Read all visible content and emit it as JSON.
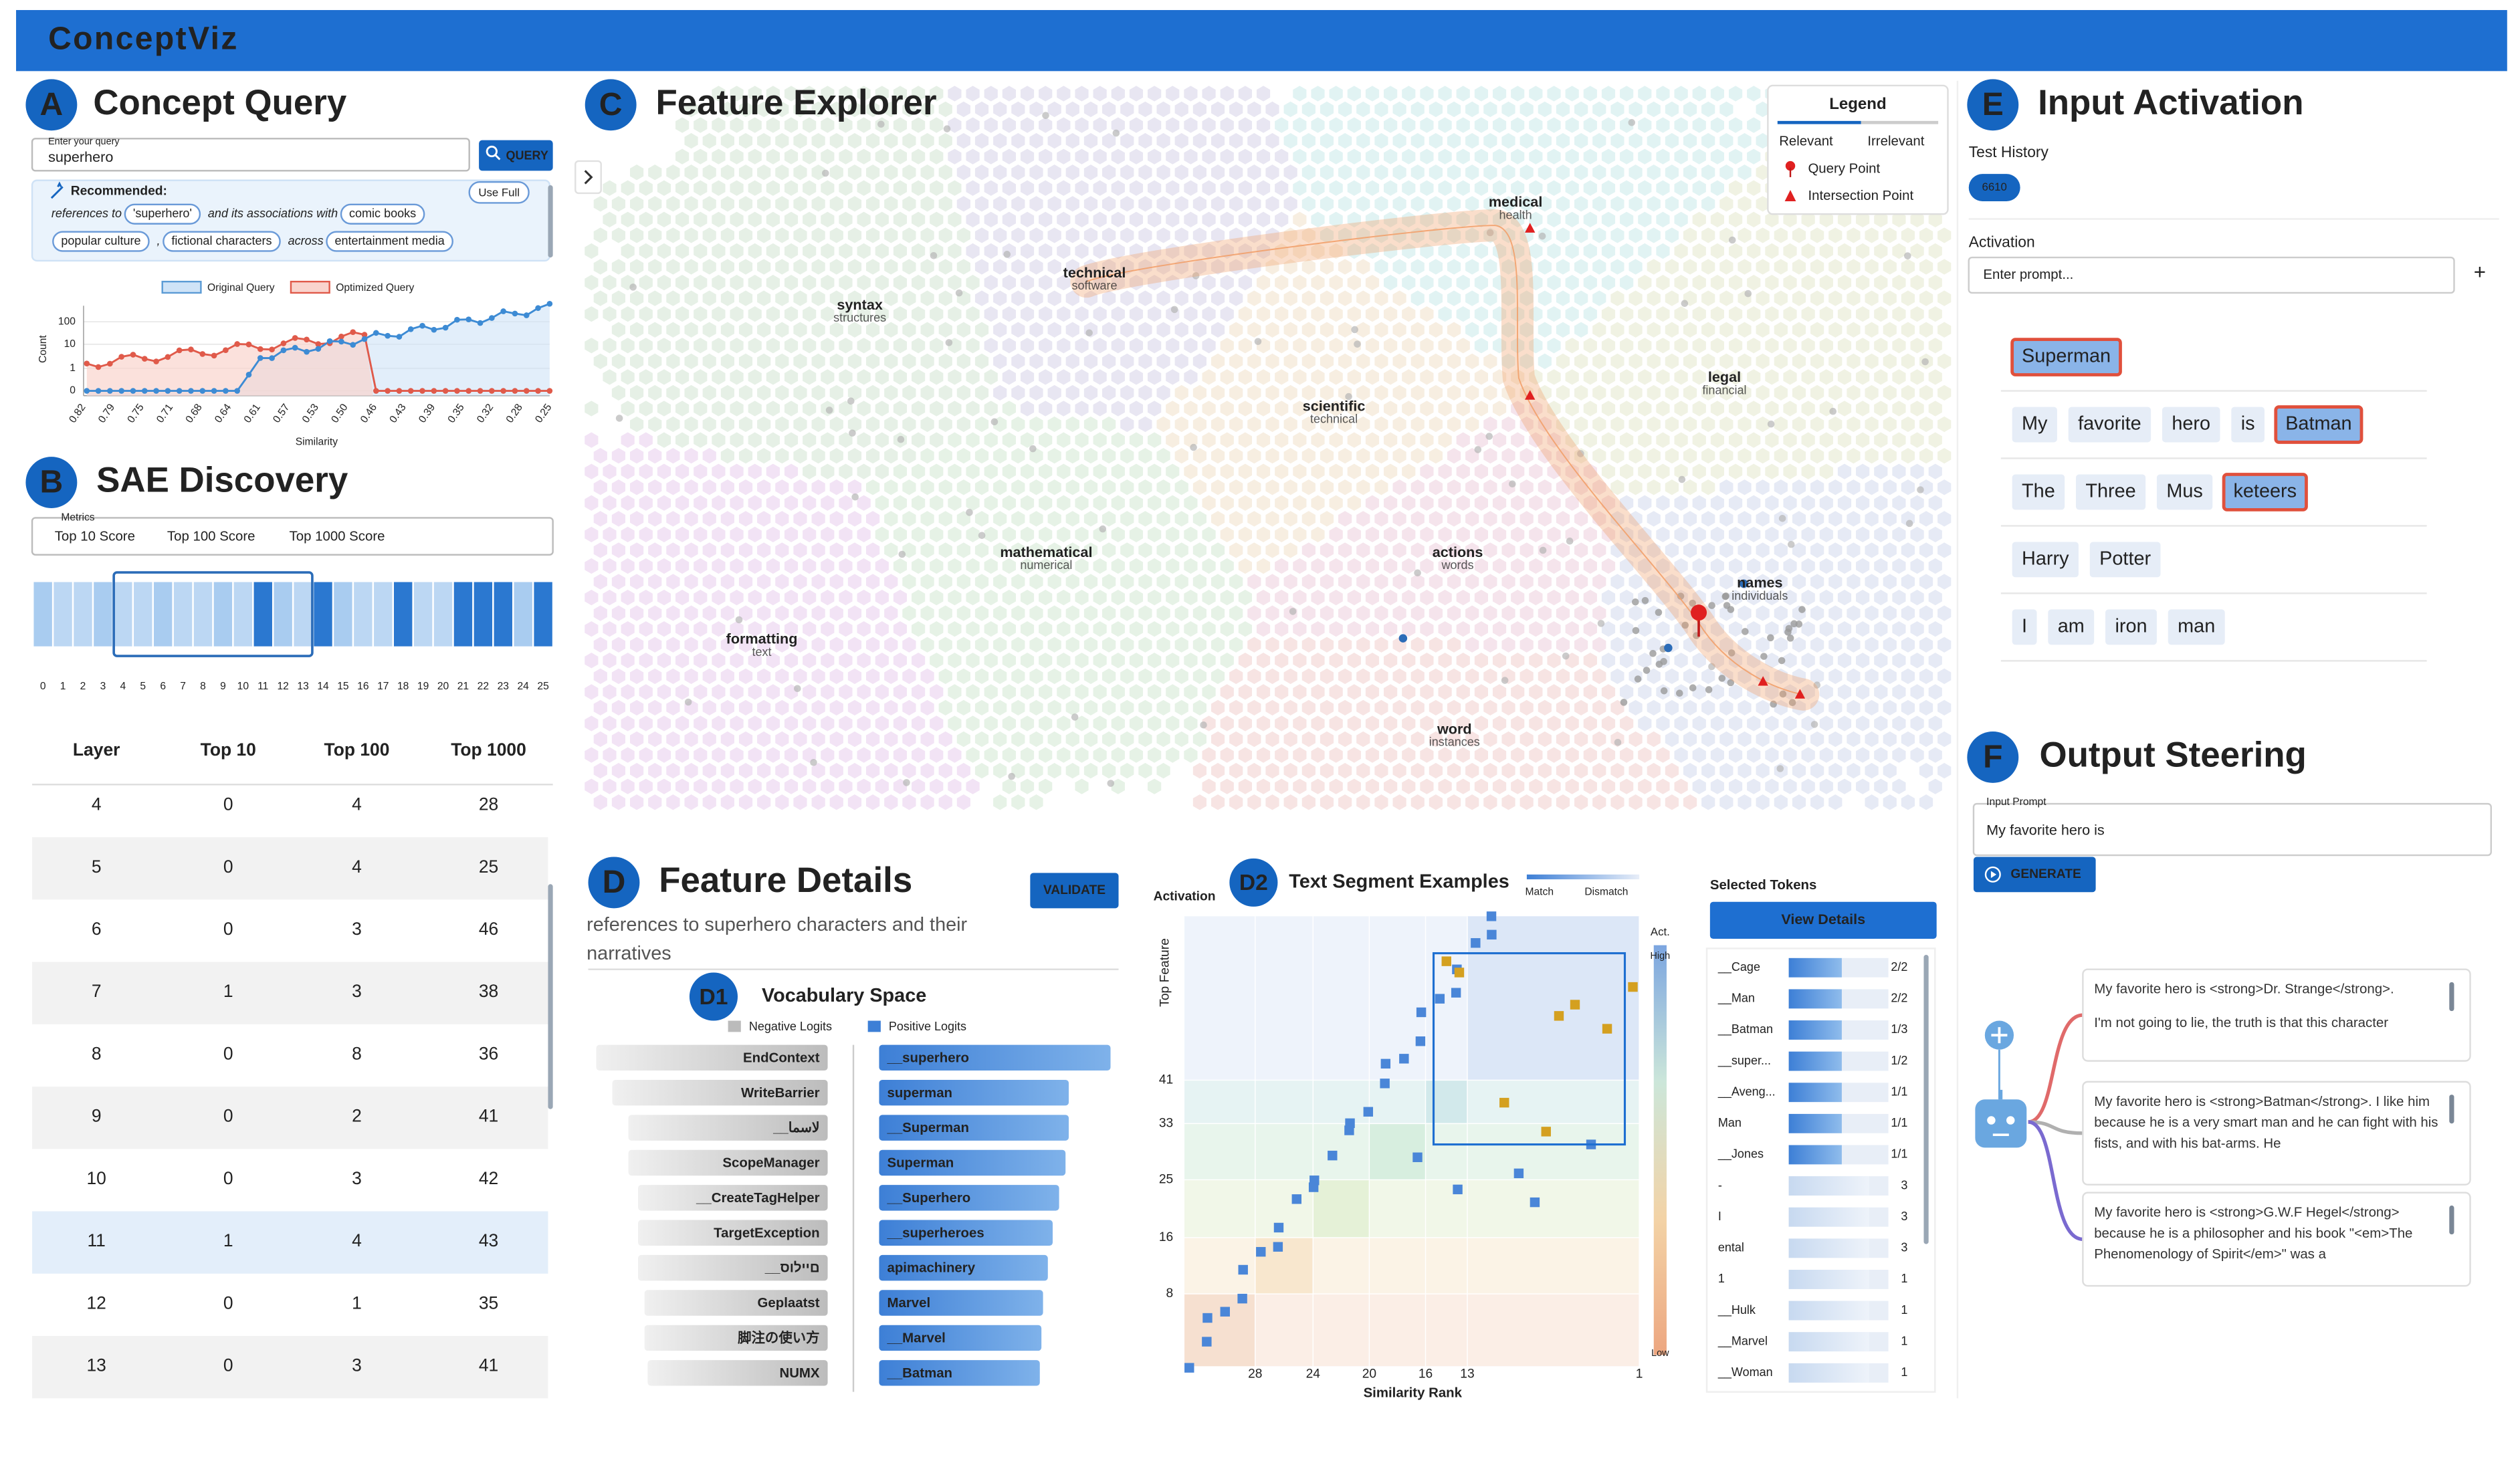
{
  "header": {
    "title": "ConceptViz"
  },
  "concept_query": {
    "badge": "A",
    "title": "Concept Query",
    "input_label": "Enter your query",
    "input_value": "superhero",
    "button": "QUERY",
    "recommended": "Recommended:",
    "use_full": "Use Full",
    "recommendation": [
      [
        {
          "text": "references to"
        },
        {
          "chip": "'superhero'"
        },
        {
          "text": "and its associations with"
        },
        {
          "chip": "comic books"
        }
      ],
      [
        {
          "chip": "popular culture"
        },
        {
          "text": ","
        },
        {
          "chip": "fictional characters"
        },
        {
          "text": "across"
        },
        {
          "chip": "entertainment media"
        }
      ]
    ],
    "chart": {
      "legend": [
        "Original Query",
        "Optimized Query"
      ],
      "ylabel": "Count",
      "xlabel": "Similarity",
      "yticks": [
        "100",
        "10",
        "1",
        "0"
      ],
      "xticks": [
        "0.82",
        "0.79",
        "0.75",
        "0.71",
        "0.68",
        "0.64",
        "0.61",
        "0.57",
        "0.53",
        "0.50",
        "0.46",
        "0.43",
        "0.39",
        "0.35",
        "0.32",
        "0.28",
        "0.25"
      ]
    }
  },
  "sae_discovery": {
    "badge": "B",
    "title": "SAE Discovery",
    "metrics": "Metrics",
    "tabs": [
      "Top 10 Score",
      "Top 100 Score",
      "Top 1000 Score"
    ],
    "layers": [
      0,
      1,
      2,
      3,
      4,
      5,
      6,
      7,
      8,
      9,
      10,
      11,
      12,
      13,
      14,
      15,
      16,
      17,
      18,
      19,
      20,
      21,
      22,
      23,
      24,
      25
    ],
    "table": {
      "columns": [
        "Layer",
        "Top 10",
        "Top 100",
        "Top 1000"
      ],
      "rows": [
        [
          4,
          0,
          4,
          28
        ],
        [
          5,
          0,
          4,
          25
        ],
        [
          6,
          0,
          3,
          46
        ],
        [
          7,
          1,
          3,
          38
        ],
        [
          8,
          0,
          8,
          36
        ],
        [
          9,
          0,
          2,
          41
        ],
        [
          10,
          0,
          3,
          42
        ],
        [
          11,
          1,
          4,
          43
        ],
        [
          12,
          0,
          1,
          35
        ],
        [
          13,
          0,
          3,
          41
        ]
      ]
    }
  },
  "feature_explorer": {
    "badge": "C",
    "title": "Feature Explorer",
    "legend": {
      "title": "Legend",
      "relevant": "Relevant",
      "irrelevant": "Irrelevant",
      "query_point": "Query Point",
      "intersection_point": "Intersection Point"
    },
    "clusters": [
      {
        "label": "technical",
        "sub": "software",
        "color": "#4a3a9e"
      },
      {
        "label": "syntax",
        "sub": "structures",
        "color": "#3f8a3f"
      },
      {
        "label": "medical",
        "sub": "health",
        "color": "#1aa3a3"
      },
      {
        "label": "legal",
        "sub": "financial",
        "color": "#8a9a2a"
      },
      {
        "label": "scientific",
        "sub": "technical",
        "color": "#c07a1a"
      },
      {
        "label": "mathematical",
        "sub": "numerical",
        "color": "#3f9a3f"
      },
      {
        "label": "actions",
        "sub": "words",
        "color": "#b0306a"
      },
      {
        "label": "names",
        "sub": "individuals",
        "color": "#3a5fb0"
      },
      {
        "label": "formatting",
        "sub": "text",
        "color": "#9a2ab0"
      },
      {
        "label": "word",
        "sub": "instances",
        "color": "#c0302a"
      }
    ]
  },
  "feature_details": {
    "badge": "D",
    "title": "Feature Details",
    "validate": "VALIDATE",
    "description": "references to superhero characters and their narratives",
    "vocab": {
      "badge": "D1",
      "title": "Vocabulary Space",
      "negative_label": "Negative Logits",
      "positive_label": "Positive Logits",
      "negative": [
        "EndContext",
        "WriteBarrier",
        "__لاسما",
        "ScopeManager",
        "__CreateTagHelper",
        "TargetException",
        "__םיילוס",
        "Geplaatst",
        "脚注の使い方",
        "NUMX"
      ],
      "positive": [
        "__superhero",
        "superman",
        "__Superman",
        "Superman",
        "__Superhero",
        "__superheroes",
        "apimachinery",
        "Marvel",
        "__Marvel",
        "__Batman"
      ]
    },
    "segments": {
      "badge": "D2",
      "title": "Text Segment Examples",
      "match": "Match",
      "dismatch": "Dismatch",
      "ylabel_top": "Activation",
      "ylabel": "Top Feature",
      "xlabel": "Similarity Rank",
      "yticks": [
        41,
        33,
        25,
        16,
        8
      ],
      "xticks": [
        28,
        24,
        20,
        16,
        13,
        1
      ],
      "act": "Act.",
      "high": "High",
      "low": "Low"
    },
    "tokens": {
      "title": "Selected Tokens",
      "button": "View Details",
      "rows": [
        [
          "__Cage",
          "2/2"
        ],
        [
          "__Man",
          "2/2"
        ],
        [
          "__Batman",
          "1/3"
        ],
        [
          "__super...",
          "1/2"
        ],
        [
          "__Aveng...",
          "1/1"
        ],
        [
          "Man",
          "1/1"
        ],
        [
          "__Jones",
          "1/1"
        ],
        [
          "-",
          "3"
        ],
        [
          "I",
          "3"
        ],
        [
          "ental",
          "3"
        ],
        [
          "1",
          "1"
        ],
        [
          "__Hulk",
          "1"
        ],
        [
          "__Marvel",
          "1"
        ],
        [
          "__Woman",
          "1"
        ]
      ]
    }
  },
  "input_activation": {
    "badge": "E",
    "title": "Input Activation",
    "history_label": "Test History",
    "history": [
      "6610"
    ],
    "activation_label": "Activation",
    "placeholder": "Enter prompt...",
    "add": "+",
    "rows": [
      [
        {
          "token": "Superman",
          "highlight": true
        }
      ],
      [
        {
          "token": "My"
        },
        {
          "token": "favorite"
        },
        {
          "token": "hero"
        },
        {
          "token": "is"
        },
        {
          "token": "Batman",
          "highlight": true
        }
      ],
      [
        {
          "token": "The"
        },
        {
          "token": "Three"
        },
        {
          "token": "Mus"
        },
        {
          "token": "keteers",
          "highlight": true
        }
      ],
      [
        {
          "token": "Harry"
        },
        {
          "token": "Potter"
        }
      ],
      [
        {
          "token": "I"
        },
        {
          "token": "am"
        },
        {
          "token": "iron"
        },
        {
          "token": "man"
        }
      ]
    ]
  },
  "output_steering": {
    "badge": "F",
    "title": "Output Steering",
    "prompt_label": "Input Prompt",
    "prompt": "My favorite hero is",
    "button": "GENERATE",
    "outputs": [
      [
        "My favorite hero is <strong>Dr. Strange</strong>.",
        "I'm not going to lie, the truth is that this character"
      ],
      [
        "My favorite hero is <strong>Batman</strong>. I like him because he is a very smart man and he can fight with his fists, and with his bat-arms. He"
      ],
      [
        "My favorite hero is <strong>G.W.F Hegel</strong> because he is a philosopher and his book \"<em>The Phenomenology of Spirit</em>\" was a"
      ]
    ]
  }
}
